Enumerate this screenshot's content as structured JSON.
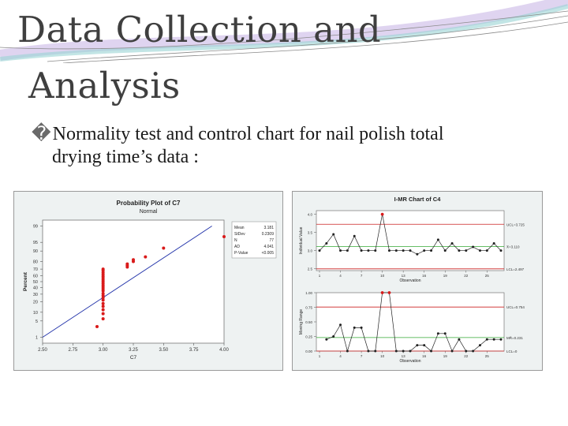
{
  "slide": {
    "title_line1": "Data Collection and",
    "title_line2": "Analysis",
    "bullet_glyph": "�",
    "bullet_line1": "Normality test and control chart for nail polish total",
    "bullet_line2": "drying time’s data :",
    "colors": {
      "title": "#3f3f3f",
      "points": "#d91a1a",
      "fit_line": "#2233aa",
      "center_line": "#33aa33",
      "limit_line": "#cc2222"
    }
  },
  "chart_data": [
    {
      "type": "scatter",
      "title": "Probability Plot of C7",
      "subtitle": "Normal",
      "xlabel": "C7",
      "ylabel": "Percent",
      "xlim": [
        2.5,
        4.0
      ],
      "xticks": [
        "2.50",
        "2.75",
        "3.00",
        "3.25",
        "3.50",
        "3.75",
        "4.00"
      ],
      "yticks": [
        1,
        5,
        10,
        20,
        30,
        40,
        50,
        60,
        70,
        80,
        90,
        95,
        99
      ],
      "legend": [
        {
          "label": "Mean",
          "value": "3.181"
        },
        {
          "label": "StDev",
          "value": "0.2309"
        },
        {
          "label": "N",
          "value": "77"
        },
        {
          "label": "AD",
          "value": "4.041"
        },
        {
          "label": "P-Value",
          "value": "<0.005"
        }
      ],
      "legend_placement": "right",
      "fit_line": {
        "x": [
          2.5,
          3.9
        ],
        "y": [
          1,
          99
        ]
      },
      "points": [
        {
          "x": 2.95,
          "y": 3
        },
        {
          "x": 3.0,
          "y": 6
        },
        {
          "x": 3.0,
          "y": 9
        },
        {
          "x": 3.0,
          "y": 12
        },
        {
          "x": 3.0,
          "y": 15
        },
        {
          "x": 3.0,
          "y": 18
        },
        {
          "x": 3.0,
          "y": 22
        },
        {
          "x": 3.0,
          "y": 25
        },
        {
          "x": 3.0,
          "y": 28
        },
        {
          "x": 3.0,
          "y": 31
        },
        {
          "x": 3.0,
          "y": 35
        },
        {
          "x": 3.0,
          "y": 38
        },
        {
          "x": 3.0,
          "y": 41
        },
        {
          "x": 3.0,
          "y": 44
        },
        {
          "x": 3.0,
          "y": 47
        },
        {
          "x": 3.0,
          "y": 50
        },
        {
          "x": 3.0,
          "y": 53
        },
        {
          "x": 3.0,
          "y": 56
        },
        {
          "x": 3.0,
          "y": 59
        },
        {
          "x": 3.0,
          "y": 62
        },
        {
          "x": 3.0,
          "y": 65
        },
        {
          "x": 3.0,
          "y": 68
        },
        {
          "x": 3.0,
          "y": 70
        },
        {
          "x": 3.2,
          "y": 73
        },
        {
          "x": 3.2,
          "y": 75
        },
        {
          "x": 3.2,
          "y": 77
        },
        {
          "x": 3.25,
          "y": 80
        },
        {
          "x": 3.25,
          "y": 82
        },
        {
          "x": 3.35,
          "y": 85
        },
        {
          "x": 3.5,
          "y": 92
        },
        {
          "x": 4.0,
          "y": 97
        }
      ]
    },
    {
      "type": "line",
      "title": "I-MR Chart of C4",
      "subcharts": [
        {
          "ylabel": "Individual Value",
          "xlabel": "Observation",
          "ylim": [
            2.45,
            4.1
          ],
          "yticks": [
            "4.0",
            "3.5",
            "3.0",
            "2.5"
          ],
          "xticks": [
            1,
            4,
            7,
            10,
            13,
            16,
            19,
            22,
            25
          ],
          "ucl_label": "UCL=3.725",
          "ucl": 3.725,
          "center_label": "X̄=3.110",
          "center": 3.11,
          "lcl_label": "LCL=2.497",
          "lcl": 2.497,
          "values": [
            3.0,
            3.2,
            3.45,
            3.0,
            3.0,
            3.4,
            3.0,
            3.0,
            3.0,
            4.0,
            3.0,
            3.0,
            3.0,
            3.0,
            2.9,
            3.0,
            3.0,
            3.3,
            3.0,
            3.2,
            3.0,
            3.0,
            3.1,
            3.0,
            3.0,
            3.2,
            3.0
          ],
          "out_of_control_index": [
            9
          ]
        },
        {
          "ylabel": "Moving Range",
          "xlabel": "Observation",
          "ylim": [
            0,
            1.0
          ],
          "yticks": [
            "1.00",
            "0.75",
            "0.50",
            "0.25",
            "0.00"
          ],
          "xticks": [
            1,
            4,
            7,
            10,
            13,
            16,
            19,
            22,
            25
          ],
          "ucl_label": "UCL=0.754",
          "ucl": 0.754,
          "center_label": "MR̄=0.231",
          "center": 0.231,
          "lcl_label": "LCL=0",
          "lcl": 0,
          "values": [
            0.2,
            0.25,
            0.45,
            0.0,
            0.4,
            0.4,
            0.0,
            0.0,
            1.0,
            1.0,
            0.0,
            0.0,
            0.0,
            0.1,
            0.1,
            0.0,
            0.3,
            0.3,
            0.0,
            0.2,
            0.0,
            0.0,
            0.1,
            0.2,
            0.2,
            0.2
          ],
          "out_of_control_index": [
            8,
            9
          ]
        }
      ]
    }
  ]
}
